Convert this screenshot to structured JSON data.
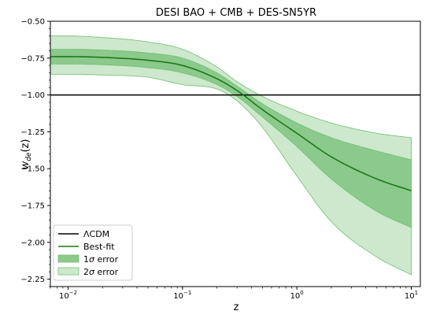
{
  "chart_data": {
    "type": "area",
    "title": "DESI BAO + CMB + DES-SN5YR",
    "xlabel": "z",
    "ylabel_main": "w",
    "ylabel_sub": "de",
    "ylabel_arg": "(z)",
    "xscale": "log",
    "xlim": [
      0.007,
      12
    ],
    "ylim": [
      -2.3,
      -0.5
    ],
    "x_ticks": [
      {
        "value": 0.01,
        "base": "10",
        "exp": "−2"
      },
      {
        "value": 0.1,
        "base": "10",
        "exp": "−1"
      },
      {
        "value": 1,
        "base": "10",
        "exp": "0"
      },
      {
        "value": 10,
        "base": "10",
        "exp": "1"
      }
    ],
    "y_ticks": [
      {
        "value": -0.5,
        "label": "−0.50"
      },
      {
        "value": -0.75,
        "label": "−0.75"
      },
      {
        "value": -1.0,
        "label": "−1.00"
      },
      {
        "value": -1.25,
        "label": "−1.25"
      },
      {
        "value": -1.5,
        "label": "−1.50"
      },
      {
        "value": -1.75,
        "label": "−1.75"
      },
      {
        "value": -2.0,
        "label": "−2.00"
      },
      {
        "value": -2.25,
        "label": "−2.25"
      }
    ],
    "reference_line": {
      "y": -1.0,
      "color": "#000000"
    },
    "z": [
      0.007,
      0.01,
      0.02,
      0.05,
      0.1,
      0.2,
      0.3,
      0.5,
      1,
      2,
      5,
      10
    ],
    "best_fit": [
      -0.74,
      -0.74,
      -0.745,
      -0.765,
      -0.8,
      -0.89,
      -0.97,
      -1.1,
      -1.26,
      -1.42,
      -1.57,
      -1.65
    ],
    "sigma1_upper": [
      -0.69,
      -0.69,
      -0.695,
      -0.715,
      -0.75,
      -0.85,
      -0.94,
      -1.06,
      -1.19,
      -1.29,
      -1.38,
      -1.44
    ],
    "sigma1_lower": [
      -0.79,
      -0.79,
      -0.795,
      -0.815,
      -0.85,
      -0.93,
      -1.01,
      -1.15,
      -1.35,
      -1.57,
      -1.79,
      -1.9
    ],
    "sigma2_upper": [
      -0.6,
      -0.6,
      -0.61,
      -0.64,
      -0.69,
      -0.81,
      -0.91,
      -1.01,
      -1.11,
      -1.19,
      -1.26,
      -1.29
    ],
    "sigma2_lower": [
      -0.86,
      -0.86,
      -0.865,
      -0.88,
      -0.93,
      -0.96,
      -1.04,
      -1.22,
      -1.55,
      -1.86,
      -2.1,
      -2.22
    ],
    "legend": {
      "position": "lower-left",
      "entries": [
        {
          "label": "ΛCDM",
          "kind": "line",
          "color": "#000000"
        },
        {
          "label": "Best-fit",
          "kind": "line",
          "color": "#1a7a1a"
        },
        {
          "label_pre": "1",
          "label_sym": "σ",
          "label_post": " error",
          "kind": "patch",
          "color": "#8cc98c"
        },
        {
          "label_pre": "2",
          "label_sym": "σ",
          "label_post": " error",
          "kind": "patch",
          "color": "#cde8cd"
        }
      ]
    },
    "colors": {
      "best_fit": "#1a7a1a",
      "sigma1_fill": "#8cc98c",
      "sigma2_fill": "#cde8cd",
      "band_edge": "#6fbf6f",
      "reference": "#000000"
    }
  }
}
